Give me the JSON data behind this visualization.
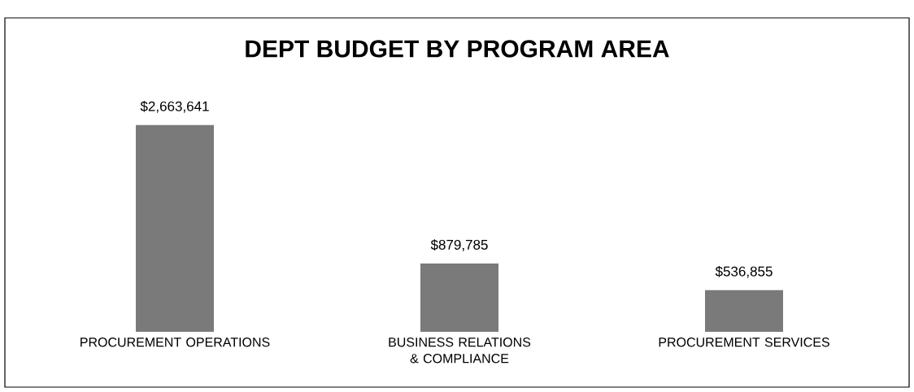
{
  "chart_data": {
    "type": "bar",
    "title": "DEPT BUDGET BY PROGRAM AREA",
    "categories": [
      "PROCUREMENT OPERATIONS",
      "BUSINESS RELATIONS & COMPLIANCE",
      "PROCUREMENT SERVICES"
    ],
    "values": [
      2663641,
      879785,
      536855
    ],
    "value_labels": [
      "$2,663,641",
      "$879,785",
      "$536,855"
    ],
    "color": "#7a7a7a"
  }
}
